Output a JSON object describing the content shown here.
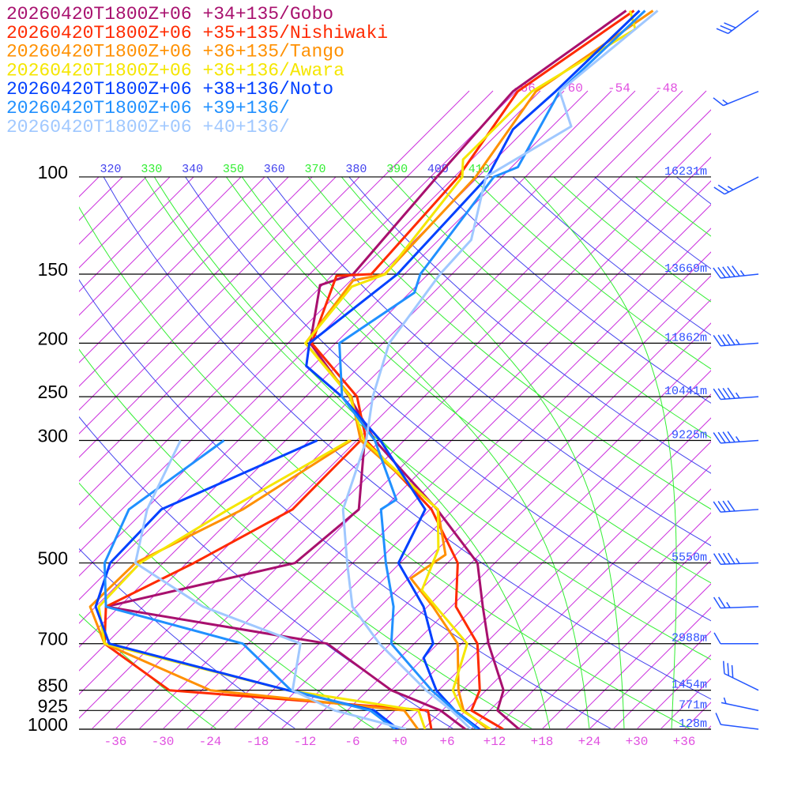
{
  "chart_data": {
    "type": "skew-t",
    "x_unit": "°C",
    "y_unit": "hPa",
    "y_scale": "log",
    "xlim": [
      -40,
      40
    ],
    "ylim": [
      1000,
      50
    ],
    "x_ticks": [
      "-36",
      "-30",
      "-24",
      "-18",
      "-12",
      "-6",
      "+0",
      "+6",
      "+12",
      "+18",
      "+24",
      "+30",
      "+36"
    ],
    "x_tick_values": [
      -36,
      -30,
      -24,
      -18,
      -12,
      -6,
      0,
      6,
      12,
      18,
      24,
      30,
      36
    ],
    "isotherm_labels": [
      {
        "t": -66,
        "text": "-66"
      },
      {
        "t": -60,
        "text": "-60"
      },
      {
        "t": -54,
        "text": "-54"
      },
      {
        "t": -48,
        "text": "-48"
      }
    ],
    "dry_adiabat_labels": [
      "320",
      "330",
      "340",
      "350",
      "360",
      "370",
      "380",
      "390",
      "400",
      "410"
    ],
    "dry_adiabat_values": [
      320,
      330,
      340,
      350,
      360,
      370,
      380,
      390,
      400,
      410
    ],
    "pressure_levels": [
      {
        "p": 100,
        "label": "100",
        "height": "16231m"
      },
      {
        "p": 150,
        "label": "150",
        "height": "13669m"
      },
      {
        "p": 200,
        "label": "200",
        "height": "11862m"
      },
      {
        "p": 250,
        "label": "250",
        "height": "10441m"
      },
      {
        "p": 300,
        "label": "300",
        "height": "9225m"
      },
      {
        "p": 500,
        "label": "500",
        "height": "5550m"
      },
      {
        "p": 700,
        "label": "700",
        "height": "2988m"
      },
      {
        "p": 850,
        "label": "850",
        "height": "1454m"
      },
      {
        "p": 925,
        "label": "925",
        "height": "771m"
      },
      {
        "p": 1000,
        "label": "1000",
        "height": "128m"
      }
    ],
    "colors": {
      "isotherm": "#cc33dd",
      "dry_adiabat_a": "#4444ee",
      "dry_adiabat_b": "#33ee33",
      "moist_adiabat": "#33ee33",
      "wind": "#2255ff"
    },
    "series": [
      {
        "name": "20260420T1800Z+06 +34+135/Gobo",
        "color": "#a8106e",
        "temperature": [
          [
            1000,
            15.1
          ],
          [
            925,
            10.0
          ],
          [
            850,
            8.2
          ],
          [
            700,
            0.4
          ],
          [
            600,
            -5.0
          ],
          [
            500,
            -11.2
          ],
          [
            400,
            -23.1
          ],
          [
            300,
            -39.7
          ],
          [
            250,
            -48.5
          ],
          [
            200,
            -60.2
          ],
          [
            157,
            -66.3
          ],
          [
            150,
            -63.5
          ],
          [
            100,
            -65.2
          ],
          [
            70,
            -66.4
          ],
          [
            50,
            -62.3
          ]
        ],
        "dewpoint": [
          [
            1000,
            8.3
          ],
          [
            925,
            2.8
          ],
          [
            850,
            -6.0
          ],
          [
            700,
            -20.0
          ],
          [
            600,
            -52.7
          ],
          [
            500,
            -34.3
          ],
          [
            400,
            -33.0
          ],
          [
            300,
            -41.0
          ]
        ]
      },
      {
        "name": "20260420T1800Z+06 +35+135/Nishiwaki",
        "color": "#ff2a00",
        "temperature": [
          [
            1000,
            13.1
          ],
          [
            925,
            6.7
          ],
          [
            850,
            5.2
          ],
          [
            700,
            -1.0
          ],
          [
            600,
            -8.4
          ],
          [
            500,
            -13.7
          ],
          [
            400,
            -23.8
          ],
          [
            300,
            -40.8
          ],
          [
            250,
            -47.5
          ],
          [
            200,
            -60.0
          ],
          [
            151,
            -65.4
          ],
          [
            150,
            -61.2
          ],
          [
            100,
            -62.5
          ],
          [
            70,
            -65.8
          ],
          [
            50,
            -61.3
          ]
        ],
        "dewpoint": [
          [
            1000,
            4.0
          ],
          [
            925,
            1.2
          ],
          [
            850,
            -34.1
          ],
          [
            700,
            -48.2
          ],
          [
            600,
            -52.7
          ],
          [
            500,
            -47.1
          ],
          [
            400,
            -41.4
          ],
          [
            300,
            -41.5
          ]
        ]
      },
      {
        "name": "20260420T1800Z+06 +36+135/Tango",
        "color": "#ff9000",
        "temperature": [
          [
            1000,
            11.2
          ],
          [
            925,
            5.7
          ],
          [
            850,
            2.5
          ],
          [
            700,
            -3.5
          ],
          [
            600,
            -11.3
          ],
          [
            533,
            -17.7
          ],
          [
            483,
            -16.3
          ],
          [
            400,
            -23.0
          ],
          [
            300,
            -41.5
          ],
          [
            250,
            -48.2
          ],
          [
            200,
            -60.8
          ],
          [
            154,
            -62.7
          ],
          [
            150,
            -59.5
          ],
          [
            100,
            -60.3
          ],
          [
            70,
            -63.5
          ],
          [
            50,
            -58.9
          ]
        ],
        "dewpoint": [
          [
            1000,
            2.3
          ],
          [
            925,
            -1.8
          ],
          [
            850,
            -28.9
          ],
          [
            700,
            -48.2
          ],
          [
            600,
            -54.7
          ],
          [
            500,
            -54.5
          ],
          [
            400,
            -47.7
          ],
          [
            300,
            -42.7
          ]
        ]
      },
      {
        "name": "20260420T1800Z+06 +36+136/Awara",
        "color": "#f5e600",
        "temperature": [
          [
            1000,
            11.5
          ],
          [
            925,
            5.5
          ],
          [
            850,
            1.8
          ],
          [
            700,
            -2.3
          ],
          [
            560,
            -14.8
          ],
          [
            472,
            -17.9
          ],
          [
            400,
            -23.0
          ],
          [
            300,
            -41.1
          ],
          [
            250,
            -48.4
          ],
          [
            200,
            -60.8
          ],
          [
            158,
            -62.1
          ],
          [
            150,
            -59.4
          ],
          [
            100,
            -62.0
          ],
          [
            93,
            -64.1
          ],
          [
            70,
            -64.0
          ],
          [
            54,
            -58.8
          ],
          [
            50,
            -61.8
          ]
        ],
        "dewpoint": [
          [
            1000,
            3.2
          ],
          [
            925,
            0.0
          ],
          [
            850,
            -19.1
          ],
          [
            700,
            -48.2
          ],
          [
            600,
            -53.6
          ],
          [
            500,
            -53.9
          ],
          [
            400,
            -49.5
          ],
          [
            300,
            -42.9
          ]
        ]
      },
      {
        "name": "20260420T1800Z+06 +38+136/Noto",
        "color": "#0040ff",
        "temperature": [
          [
            1000,
            10.1
          ],
          [
            925,
            4.6
          ],
          [
            850,
            -0.3
          ],
          [
            743,
            -6.0
          ],
          [
            700,
            -6.6
          ],
          [
            600,
            -12.5
          ],
          [
            500,
            -21.2
          ],
          [
            400,
            -24.6
          ],
          [
            300,
            -39.0
          ],
          [
            250,
            -49.4
          ],
          [
            220,
            -57.8
          ],
          [
            200,
            -60.3
          ],
          [
            150,
            -57.9
          ],
          [
            100,
            -58.8
          ],
          [
            82,
            -61.6
          ],
          [
            70,
            -61.0
          ],
          [
            50,
            -60.6
          ]
        ],
        "dewpoint": [
          [
            1000,
            -0.2
          ],
          [
            925,
            -5.6
          ],
          [
            850,
            -19.1
          ],
          [
            700,
            -47.6
          ],
          [
            600,
            -54.0
          ],
          [
            500,
            -57.7
          ],
          [
            400,
            -58.0
          ],
          [
            300,
            -47.0
          ]
        ]
      },
      {
        "name": "20260420T1800Z+06 +39+136/",
        "color": "#2090ff",
        "temperature": [
          [
            1000,
            9.8
          ],
          [
            925,
            4.6
          ],
          [
            850,
            -0.9
          ],
          [
            700,
            -11.9
          ],
          [
            600,
            -16.3
          ],
          [
            500,
            -22.8
          ],
          [
            400,
            -30.2
          ],
          [
            384,
            -29.5
          ],
          [
            300,
            -39.7
          ],
          [
            250,
            -49.4
          ],
          [
            200,
            -56.5
          ],
          [
            162,
            -53.4
          ],
          [
            150,
            -55.0
          ],
          [
            100,
            -58.0
          ],
          [
            96,
            -56.2
          ],
          [
            70,
            -60.5
          ],
          [
            50,
            -59.9
          ]
        ],
        "dewpoint": [
          [
            1000,
            -0.6
          ],
          [
            925,
            -6.1
          ],
          [
            850,
            -18.7
          ],
          [
            700,
            -30.7
          ],
          [
            600,
            -52.7
          ],
          [
            500,
            -58.4
          ],
          [
            400,
            -62.1
          ],
          [
            300,
            -58.8
          ]
        ]
      },
      {
        "name": "20260420T1800Z+06 +40+136/",
        "color": "#a0c8ff",
        "temperature": [
          [
            1000,
            9.0
          ],
          [
            925,
            4.2
          ],
          [
            850,
            -1.6
          ],
          [
            700,
            -13.4
          ],
          [
            600,
            -21.5
          ],
          [
            500,
            -27.7
          ],
          [
            400,
            -35.0
          ],
          [
            300,
            -40.8
          ],
          [
            250,
            -45.5
          ],
          [
            200,
            -50.2
          ],
          [
            150,
            -52.5
          ],
          [
            130,
            -52.9
          ],
          [
            100,
            -59.0
          ],
          [
            81,
            -54.6
          ],
          [
            70,
            -60.5
          ],
          [
            50,
            -58.3
          ]
        ],
        "dewpoint": [
          [
            1000,
            0.8
          ],
          [
            925,
            -10.6
          ],
          [
            850,
            -18.5
          ],
          [
            700,
            -23.4
          ],
          [
            600,
            -40.4
          ],
          [
            500,
            -54.5
          ],
          [
            400,
            -59.8
          ],
          [
            300,
            -64.3
          ]
        ]
      }
    ],
    "winds": [
      {
        "p": 50,
        "dir": 233,
        "kt": 30
      },
      {
        "p": 70,
        "dir": 248,
        "kt": 15
      },
      {
        "p": 100,
        "dir": 243,
        "kt": 25
      },
      {
        "p": 150,
        "dir": 264,
        "kt": 55
      },
      {
        "p": 200,
        "dir": 266,
        "kt": 45
      },
      {
        "p": 250,
        "dir": 266,
        "kt": 45
      },
      {
        "p": 300,
        "dir": 266,
        "kt": 45
      },
      {
        "p": 400,
        "dir": 266,
        "kt": 40
      },
      {
        "p": 500,
        "dir": 268,
        "kt": 45
      },
      {
        "p": 600,
        "dir": 268,
        "kt": 25
      },
      {
        "p": 700,
        "dir": 270,
        "kt": 10
      },
      {
        "p": 850,
        "dir": 296,
        "kt": 30
      },
      {
        "p": 925,
        "dir": 282,
        "kt": 5
      },
      {
        "p": 1000,
        "dir": 277,
        "kt": 10
      }
    ]
  }
}
